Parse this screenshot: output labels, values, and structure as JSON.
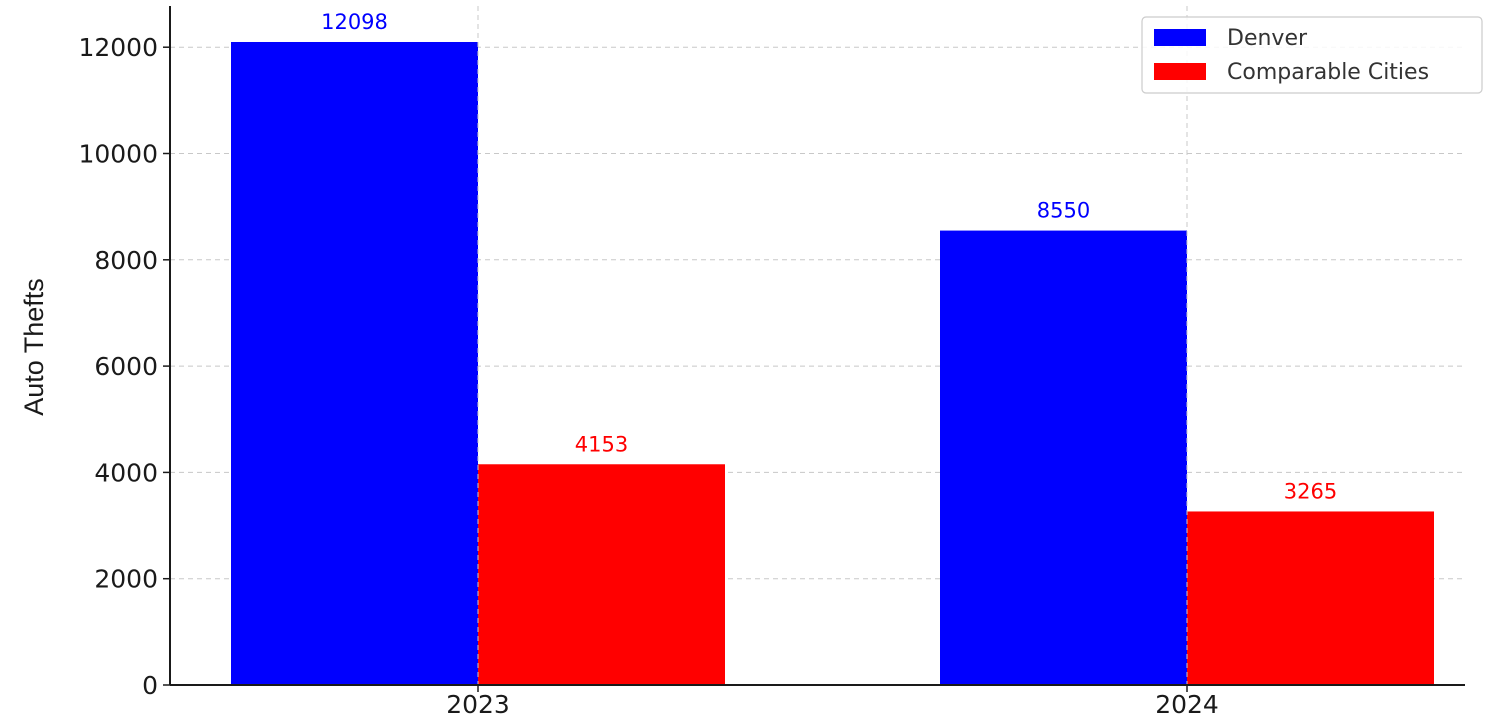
{
  "chart_data": {
    "type": "bar",
    "title": "",
    "xlabel": "",
    "ylabel": "Auto Thefts",
    "categories": [
      "2023",
      "2024"
    ],
    "series": [
      {
        "name": "Denver",
        "values": [
          12098,
          8550
        ],
        "color": "#0000ff"
      },
      {
        "name": "Comparable Cities",
        "values": [
          4153,
          3265
        ],
        "color": "#ff0000"
      }
    ],
    "ylim": [
      0,
      12700
    ],
    "yticks": [
      0,
      2000,
      4000,
      6000,
      8000,
      10000,
      12000
    ],
    "grid": true,
    "legend_position": "top-right",
    "data_labels": true
  }
}
